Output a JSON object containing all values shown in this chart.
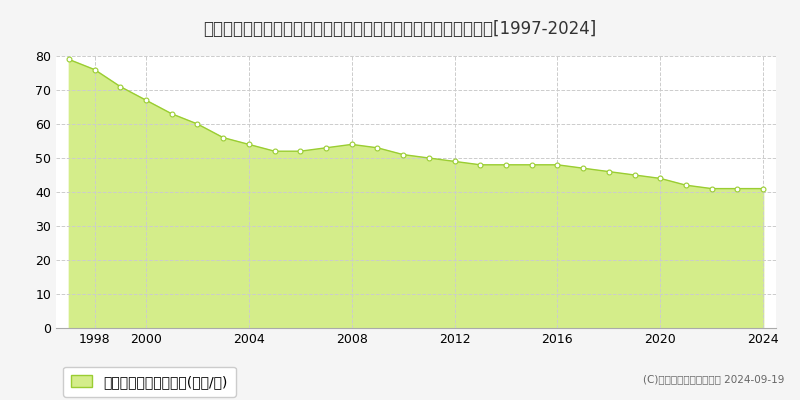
{
  "title": "神奈川県横須賀市桜が丘１丁目８６番３６　基準地価　地価推移[1997-2024]",
  "years": [
    1997,
    1998,
    1999,
    2000,
    2001,
    2002,
    2003,
    2004,
    2005,
    2006,
    2007,
    2008,
    2009,
    2010,
    2011,
    2012,
    2013,
    2014,
    2015,
    2016,
    2017,
    2018,
    2019,
    2020,
    2021,
    2022,
    2023,
    2024
  ],
  "values": [
    79,
    76,
    71,
    67,
    63,
    60,
    56,
    54,
    52,
    52,
    53,
    54,
    53,
    51,
    50,
    49,
    48,
    48,
    48,
    48,
    47,
    46,
    45,
    44,
    42,
    41,
    41,
    41
  ],
  "line_color": "#9acd32",
  "fill_color": "#d4ed8a",
  "marker_color": "#ffffff",
  "marker_edge_color": "#9acd32",
  "background_color": "#f5f5f5",
  "plot_bg_color": "#ffffff",
  "grid_color": "#cccccc",
  "ylim": [
    0,
    80
  ],
  "yticks": [
    0,
    10,
    20,
    30,
    40,
    50,
    60,
    70,
    80
  ],
  "xtick_years": [
    1998,
    2000,
    2004,
    2008,
    2012,
    2016,
    2020,
    2024
  ],
  "legend_label": "基準地価　平均嵪単価(万円/嵪)",
  "copyright_text": "(C)土地価格ドットコム　 2024-09-19",
  "title_fontsize": 12,
  "tick_fontsize": 9,
  "legend_fontsize": 9
}
